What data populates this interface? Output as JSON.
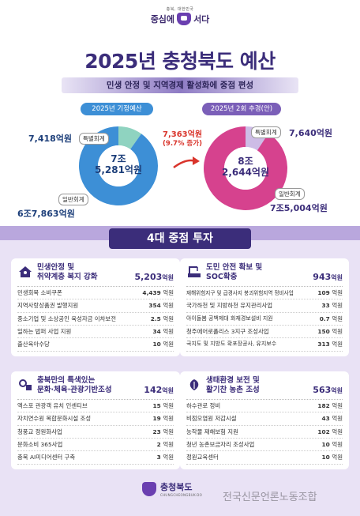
{
  "logo": {
    "small": "충북, 대한민국",
    "text_left": "중심에",
    "text_right": "서다"
  },
  "title": "2025년 충청북도 예산",
  "subtitle": "민생 안정 및 지역경제 활성화에 중점 편성",
  "left_chart": {
    "pill": "2025년 기정예산",
    "total_line1": "7조",
    "total_line2": "5,281억원",
    "special_amount": "7,418억원",
    "special_tag": "특별회계",
    "general_tag": "일반회계",
    "general_amount": "6조7,863억원",
    "special_value": 7418,
    "general_value": 67863,
    "color_general": "#3d8fd6",
    "color_special": "#8fd3c0"
  },
  "right_chart": {
    "pill": "2025년 2회 추경(안)",
    "total_line1": "8조",
    "total_line2": "2,644억원",
    "special_amount": "7,640억원",
    "special_tag": "특별회계",
    "general_tag": "일반회계",
    "general_amount": "7조5,004억원",
    "special_value": 7640,
    "general_value": 75004,
    "color_general": "#d6428e",
    "color_special": "#cdbce6"
  },
  "increase": {
    "amount": "7,363억원",
    "pct": "(9.7% 증가)"
  },
  "section_title": "4대 중점 투자",
  "cards": [
    {
      "title1": "민생안정 및",
      "title2": "취약계층 복지 강화",
      "total": "5,203",
      "unit": "억원",
      "icon": "people-house-icon",
      "items": [
        {
          "name": "민생회복 소비쿠폰",
          "value": "4,439",
          "unit": "억원"
        },
        {
          "name": "지역사랑상품권 발행지원",
          "value": "354",
          "unit": "억원"
        },
        {
          "name": "중소기업 및 소상공인 육성자금 이차보전",
          "value": "2.5",
          "unit": "억원"
        },
        {
          "name": "일하는 밥퍼 사업 지원",
          "value": "34",
          "unit": "억원"
        },
        {
          "name": "출산육아수당",
          "value": "10",
          "unit": "억원"
        }
      ]
    },
    {
      "title1": "도민 안전 확보 및",
      "title2": "SOC확충",
      "total": "943",
      "unit": "억원",
      "icon": "construction-icon",
      "items": [
        {
          "name": "재해위험지구 및 급경사지 붕괴위험지역 정비사업",
          "value": "109",
          "unit": "억원"
        },
        {
          "name": "국가하천 및 지방하천 유지관리사업",
          "value": "33",
          "unit": "억원"
        },
        {
          "name": "아이돌봄 공백제대 화재경보설비 지원",
          "value": "0.7",
          "unit": "억원"
        },
        {
          "name": "청주에어로폴리스 3지구 조성사업",
          "value": "150",
          "unit": "억원"
        },
        {
          "name": "국지도 및 지방도 확포장공사, 유지보수",
          "value": "313",
          "unit": "억원"
        }
      ]
    },
    {
      "title1": "충북만의 특색있는",
      "title2": "문화·체육·관광기반조성",
      "total": "142",
      "unit": "억원",
      "icon": "culture-sports-icon",
      "items": [
        {
          "name": "엑스포 관광객 유치 인센티브",
          "value": "15",
          "unit": "억원"
        },
        {
          "name": "자치연수원 복합문화시설 조성",
          "value": "19",
          "unit": "억원"
        },
        {
          "name": "청풍교 정원화사업",
          "value": "23",
          "unit": "억원"
        },
        {
          "name": "문화소비 365사업",
          "value": "2",
          "unit": "억원"
        },
        {
          "name": "충북 AI미디어센터 구축",
          "value": "3",
          "unit": "억원"
        }
      ]
    },
    {
      "title1": "생태환경 보전 및",
      "title2": "활기찬 농촌 조성",
      "total": "563",
      "unit": "억원",
      "icon": "eco-farm-icon",
      "items": [
        {
          "name": "하수관로 정비",
          "value": "182",
          "unit": "억원"
        },
        {
          "name": "비점오염원 저감시설",
          "value": "43",
          "unit": "억원"
        },
        {
          "name": "농작물 재해보험 지원",
          "value": "102",
          "unit": "억원"
        },
        {
          "name": "청년 농촌보금자리 조성사업",
          "value": "10",
          "unit": "억원"
        },
        {
          "name": "정원교육센터",
          "value": "10",
          "unit": "억원"
        }
      ]
    }
  ],
  "footer": {
    "name": "충청북도",
    "sub": "CHUNGCHEONGBUK-DO"
  },
  "watermark": "전국신문언론노동조합"
}
